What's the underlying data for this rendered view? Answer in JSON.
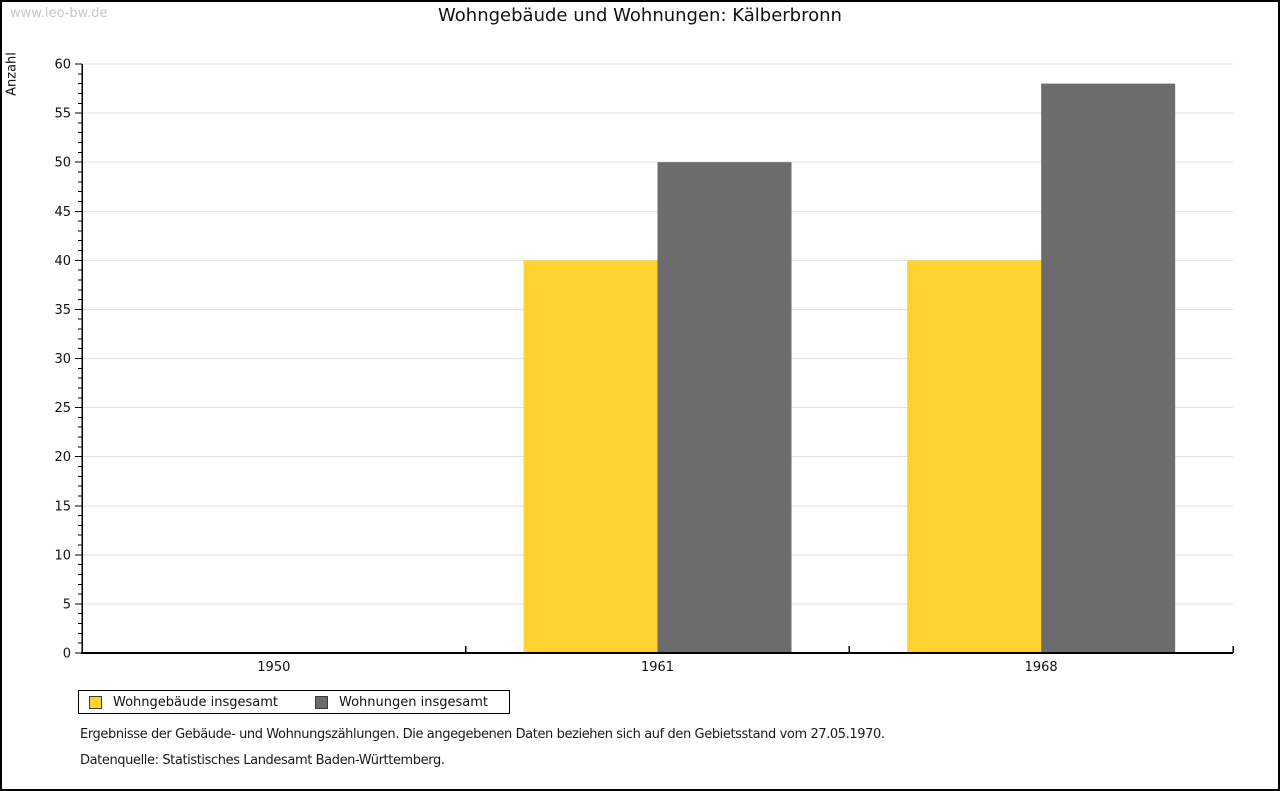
{
  "watermark": "www.leo-bw.de",
  "title": "Wohngebäude und Wohnungen: Kälberbronn",
  "chart_data": {
    "type": "bar",
    "title": "Wohngebäude und Wohnungen: Kälberbronn",
    "categories": [
      "1950",
      "1961",
      "1968"
    ],
    "series": [
      {
        "name": "Wohngebäude insgesamt",
        "color": "#FDD42F",
        "values": [
          null,
          40,
          40
        ]
      },
      {
        "name": "Wohnungen insgesamt",
        "color": "#6C6C6C",
        "values": [
          null,
          50,
          58
        ]
      }
    ],
    "xlabel": "",
    "ylabel": "Anzahl",
    "ylim": [
      0,
      60
    ],
    "ytick_step": 5,
    "yminor_step": 1,
    "grid": true,
    "gridline_color": "#E2E2E2",
    "legend_position": "bottom-left"
  },
  "footer": {
    "line1": "Ergebnisse der Gebäude- und Wohnungszählungen. Die angegebenen Daten beziehen sich auf den Gebietsstand vom 27.05.1970.",
    "line2": "Datenquelle: Statistisches Landesamt Baden-Württemberg."
  }
}
